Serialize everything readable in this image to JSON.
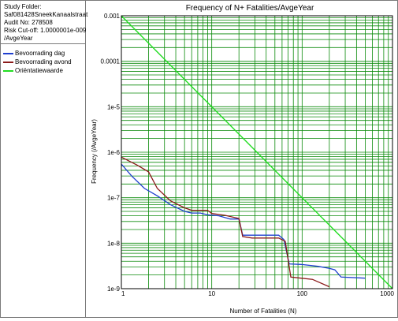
{
  "info": {
    "lines": [
      "Study Folder:",
      "Saf081428SneekKanaalstraat",
      "Audit No: 278508",
      "Risk Cut-off: 1.0000001e-009",
      "/AvgeYear"
    ]
  },
  "chart_data": {
    "type": "line",
    "title": "Frequency of N+ Fatalities/AvgeYear",
    "xlabel": "Number of Fatalities (N)",
    "ylabel": "Frequency (/AvgeYear)",
    "x_scale": "log",
    "y_scale": "log",
    "xlim": [
      1,
      1000
    ],
    "ylim": [
      1e-09,
      0.001
    ],
    "grid": true,
    "legend_position": "left panel",
    "x_tick_labels": [
      {
        "value": 1,
        "label": "1"
      },
      {
        "value": 10,
        "label": "10"
      },
      {
        "value": 100,
        "label": "100"
      },
      {
        "value": 1000,
        "label": "1000"
      }
    ],
    "y_tick_labels": [
      {
        "value": 0.001,
        "label": "0.001"
      },
      {
        "value": 0.0001,
        "label": "0.0001"
      },
      {
        "value": 1e-05,
        "label": "1e-5"
      },
      {
        "value": 1e-06,
        "label": "1e-6"
      },
      {
        "value": 1e-07,
        "label": "1e-7"
      },
      {
        "value": 1e-08,
        "label": "1e-8"
      },
      {
        "value": 1e-09,
        "label": "1e-9"
      }
    ],
    "series": [
      {
        "name": "Bevoorrading dag",
        "color": "#1f3fcf",
        "points": [
          [
            1,
            5.5e-07
          ],
          [
            1.3,
            3e-07
          ],
          [
            1.8,
            1.6e-07
          ],
          [
            2.5,
            1.1e-07
          ],
          [
            3.5,
            7e-08
          ],
          [
            5,
            5e-08
          ],
          [
            6,
            4.6e-08
          ],
          [
            7.5,
            4.6e-08
          ],
          [
            9,
            4.2e-08
          ],
          [
            12,
            4e-08
          ],
          [
            16,
            3.4e-08
          ],
          [
            20,
            3.4e-08
          ],
          [
            22,
            1.5e-08
          ],
          [
            28,
            1.5e-08
          ],
          [
            55,
            1.5e-08
          ],
          [
            63,
            1.2e-08
          ],
          [
            72,
            3.5e-09
          ],
          [
            100,
            3.4e-09
          ],
          [
            150,
            3.1e-09
          ],
          [
            200,
            2.8e-09
          ],
          [
            230,
            2.6e-09
          ],
          [
            270,
            1.8e-09
          ],
          [
            500,
            1.7e-09
          ]
        ]
      },
      {
        "name": "Bevoorrading avond",
        "color": "#8b1a1a",
        "points": [
          [
            1,
            7.8e-07
          ],
          [
            1.5,
            5.2e-07
          ],
          [
            2,
            3.7e-07
          ],
          [
            2.5,
            1.6e-07
          ],
          [
            3.5,
            8.5e-08
          ],
          [
            5,
            6e-08
          ],
          [
            6,
            5.3e-08
          ],
          [
            9,
            5.3e-08
          ],
          [
            10,
            4.5e-08
          ],
          [
            14,
            4.1e-08
          ],
          [
            20,
            3.5e-08
          ],
          [
            22,
            1.4e-08
          ],
          [
            28,
            1.3e-08
          ],
          [
            55,
            1.3e-08
          ],
          [
            65,
            1.1e-08
          ],
          [
            75,
            1.8e-09
          ],
          [
            130,
            1.6e-09
          ],
          [
            200,
            1.1e-09
          ]
        ]
      },
      {
        "name": "Oriëntatiewaarde",
        "color": "#22dd22",
        "points": [
          [
            1,
            0.001
          ],
          [
            1000,
            1e-09
          ]
        ]
      }
    ]
  }
}
